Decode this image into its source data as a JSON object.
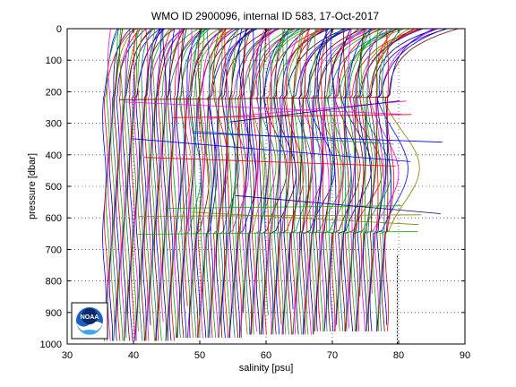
{
  "chart_data": {
    "type": "line",
    "title": "WMO ID 2900096, internal ID 583, 17-Oct-2017",
    "xlabel": "salinity [psu]",
    "ylabel": "pressure [dbar]",
    "xlim": [
      30,
      90
    ],
    "ylim": [
      1000,
      0
    ],
    "y_reversed": true,
    "grid": true,
    "grid_style": "dotted",
    "x_ticks": [
      30,
      40,
      50,
      60,
      70,
      80,
      90
    ],
    "y_ticks": [
      0,
      100,
      200,
      300,
      400,
      500,
      600,
      700,
      800,
      900,
      1000
    ],
    "profile_offset_start_psu": 35.6,
    "profile_offset_end_psu": 78.2,
    "profile_count": 170,
    "profile_colors": [
      "#0000ff",
      "#ff0000",
      "#00aa00",
      "#ff00ff",
      "#000080",
      "#808000",
      "#008080",
      "#800000"
    ],
    "reference_line_x": 79.8,
    "reference_line_range": [
      720,
      1000
    ]
  },
  "logo": {
    "text": "NOAA",
    "name": "noaa-logo"
  }
}
